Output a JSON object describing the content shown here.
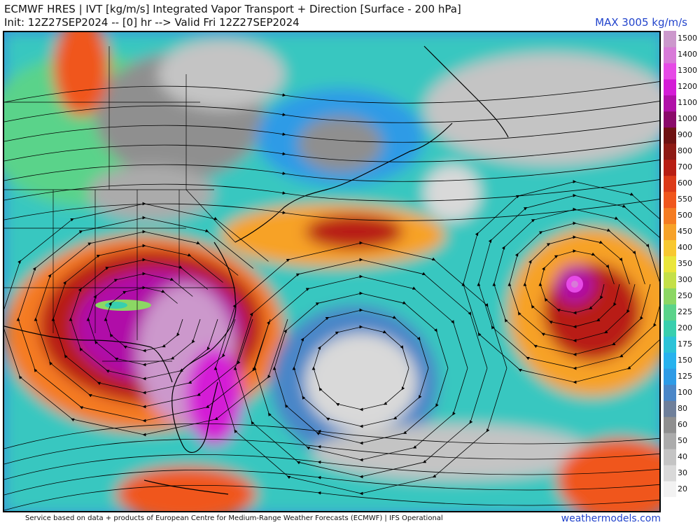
{
  "header": {
    "title": "ECMWF HRES | IVT [kg/m/s] Integrated Vapor Transport + Direction [Surface - 200 hPa]",
    "subtitle": "Init: 12Z27SEP2024 -- [0] hr --> Valid Fri 12Z27SEP2024",
    "max_label": "MAX 3005 kg/m/s"
  },
  "colorbar": {
    "levels": [
      "20",
      "30",
      "40",
      "50",
      "60",
      "80",
      "100",
      "125",
      "150",
      "175",
      "200",
      "225",
      "250",
      "300",
      "350",
      "400",
      "450",
      "500",
      "550",
      "600",
      "700",
      "800",
      "900",
      "1000",
      "1100",
      "1200",
      "1300",
      "1400",
      "1500"
    ],
    "colors": [
      "#f2f2f2",
      "#d9d9d9",
      "#c4c4c4",
      "#ababab",
      "#8f8f8f",
      "#6f7f9a",
      "#4a86c8",
      "#2e9be6",
      "#27b2ee",
      "#2bc3d8",
      "#38cfae",
      "#5ad38a",
      "#8cd764",
      "#c4e048",
      "#eae63a",
      "#f8c830",
      "#f7a228",
      "#f57c22",
      "#f0561c",
      "#dc3a18",
      "#b81e14",
      "#8e1a14",
      "#6e1212",
      "#8a0a6a",
      "#b010a8",
      "#d41cd6",
      "#e64ae6",
      "#d87ad8",
      "#cc98cc"
    ]
  },
  "map": {
    "features": [
      "coastlines",
      "state-borders",
      "streamlines",
      "ivt-shading",
      "tropical-cyclone"
    ]
  },
  "footer": {
    "credit": "Service based on data + products of European Centre for Medium-Range Weather Forecasts (ECMWF) | IFS Operational",
    "brand": "weathermodels.com"
  }
}
